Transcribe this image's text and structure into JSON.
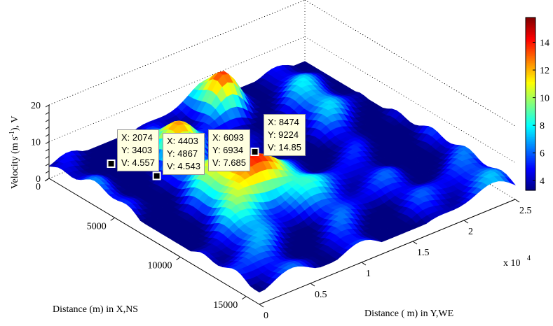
{
  "chart_data": {
    "type": "surface",
    "xlabel": "Distance (m) in X,NS",
    "ylabel": "Distance ( m) in Y,WE",
    "zlabel": "Velocity (m s-1), V",
    "zlabel_parts": {
      "main": "Velocity (m s",
      "sup": "-1",
      "end": "), V"
    },
    "x_ticks": [
      "0",
      "5000",
      "10000",
      "15000"
    ],
    "x_tick_values": [
      0,
      5000,
      10000,
      15000
    ],
    "xlim": [
      0,
      16000
    ],
    "y_ticks": [
      "0",
      "0.5",
      "1",
      "1.5",
      "2",
      "2.5"
    ],
    "y_tick_values": [
      0,
      0.5,
      1,
      1.5,
      2,
      2.5
    ],
    "y_multiplier": "x 10",
    "y_multiplier_exp": "4",
    "ylim": [
      0,
      2.5
    ],
    "z_ticks": [
      "0",
      "10",
      "20"
    ],
    "z_tick_values": [
      0,
      10,
      20
    ],
    "zlim": [
      0,
      20
    ],
    "colormap": "jet",
    "colorbar": {
      "ticks": [
        "4",
        "6",
        "8",
        "10",
        "12",
        "14"
      ],
      "tick_values": [
        4,
        6,
        8,
        10,
        12,
        14
      ],
      "range": [
        3.3,
        15.8
      ]
    },
    "grid": "on",
    "datatips": [
      {
        "x": "X: 2074",
        "y": "Y: 3403",
        "v": "V: 4.557",
        "xv": 2074,
        "yv": 3403,
        "vv": 4.557
      },
      {
        "x": "X: 4403",
        "y": "Y: 4867",
        "v": "V: 4.543",
        "xv": 4403,
        "yv": 4867,
        "vv": 4.543
      },
      {
        "x": "X: 6093",
        "y": "Y: 6934",
        "v": "V: 7.685",
        "xv": 6093,
        "yv": 6934,
        "vv": 7.685
      },
      {
        "x": "X: 8474",
        "y": "Y: 9224",
        "v": "V: 14.85",
        "xv": 8474,
        "yv": 9224,
        "vv": 14.85
      }
    ]
  }
}
